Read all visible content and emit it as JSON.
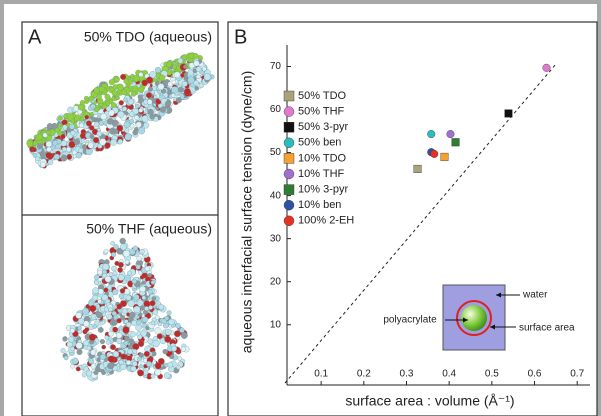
{
  "panel_a": {
    "label": "A",
    "top_title": "50% TDO (aqueous)",
    "bottom_title": "50% THF (aqueous)"
  },
  "chart_data": {
    "type": "scatter",
    "panel_label": "B",
    "xlabel": "surface area : volume (Å⁻¹)",
    "ylabel": "aqueous interfacial surface tension (dyne/cm)",
    "xlim": [
      0.02,
      0.73
    ],
    "ylim": [
      -4,
      75
    ],
    "xticks": [
      0.1,
      0.2,
      0.3,
      0.4,
      0.5,
      0.6,
      0.7
    ],
    "yticks": [
      10,
      20,
      30,
      40,
      50,
      60,
      70
    ],
    "inset_labels": [
      "water",
      "polyacrylate",
      "surface area"
    ],
    "series": [
      {
        "name": "50% TDO",
        "color": "#a9a27a",
        "marker": "square",
        "x": [
          0.326
        ],
        "values": [
          46.2
        ]
      },
      {
        "name": "50% THF",
        "color": "#e07ad0",
        "marker": "circle",
        "x": [
          0.628
        ],
        "values": [
          69.7
        ]
      },
      {
        "name": "50% 3-pyr",
        "color": "#111111",
        "marker": "square",
        "x": [
          0.539
        ],
        "values": [
          59.1
        ]
      },
      {
        "name": "50% ben",
        "color": "#2bbcbc",
        "marker": "circle",
        "x": [
          0.358
        ],
        "values": [
          54.3
        ]
      },
      {
        "name": "10% TDO",
        "color": "#f5a030",
        "marker": "square",
        "x": [
          0.389
        ],
        "values": [
          49.0
        ]
      },
      {
        "name": "10% THF",
        "color": "#a070d0",
        "marker": "circle",
        "x": [
          0.403
        ],
        "values": [
          54.3
        ]
      },
      {
        "name": "10% 3-pyr",
        "color": "#2e7d32",
        "marker": "square",
        "x": [
          0.415
        ],
        "values": [
          52.4
        ]
      },
      {
        "name": "10% ben",
        "color": "#3050a8",
        "marker": "circle",
        "x": [
          0.358
        ],
        "values": [
          50.1
        ]
      },
      {
        "name": "100% 2-EH",
        "color": "#e83020",
        "marker": "circle",
        "x": [
          0.365
        ],
        "values": [
          49.7
        ]
      }
    ]
  }
}
